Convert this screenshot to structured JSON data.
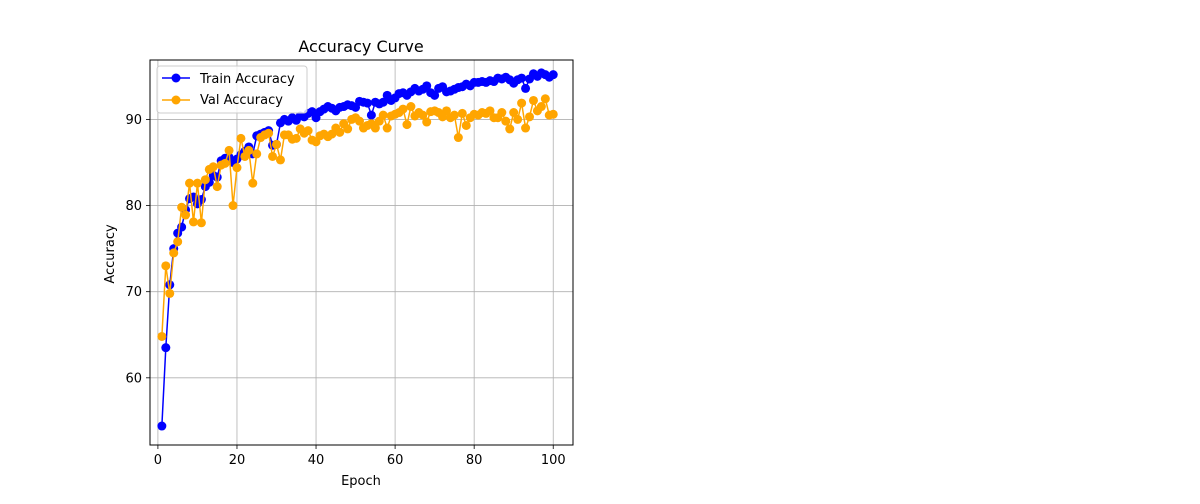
{
  "chart_data": {
    "type": "line",
    "title": "Accuracy Curve",
    "xlabel": "Epoch",
    "ylabel": "Accuracy",
    "xlim": [
      -2,
      105
    ],
    "ylim": [
      52.2,
      96.9
    ],
    "xticks": [
      0,
      20,
      40,
      60,
      80,
      100
    ],
    "yticks": [
      60,
      70,
      80,
      90
    ],
    "grid": true,
    "legend_position": "top-left",
    "x": [
      1,
      2,
      3,
      4,
      5,
      6,
      7,
      8,
      9,
      10,
      11,
      12,
      13,
      14,
      15,
      16,
      17,
      18,
      19,
      20,
      21,
      22,
      23,
      24,
      25,
      26,
      27,
      28,
      29,
      30,
      31,
      32,
      33,
      34,
      35,
      36,
      37,
      38,
      39,
      40,
      41,
      42,
      43,
      44,
      45,
      46,
      47,
      48,
      49,
      50,
      51,
      52,
      53,
      54,
      55,
      56,
      57,
      58,
      59,
      60,
      61,
      62,
      63,
      64,
      65,
      66,
      67,
      68,
      69,
      70,
      71,
      72,
      73,
      74,
      75,
      76,
      77,
      78,
      79,
      80,
      81,
      82,
      83,
      84,
      85,
      86,
      87,
      88,
      89,
      90,
      91,
      92,
      93,
      94,
      95,
      96,
      97,
      98,
      99,
      100
    ],
    "series": [
      {
        "name": "Train Accuracy",
        "color": "#0000ff",
        "values": [
          54.4,
          63.5,
          70.8,
          75.0,
          76.8,
          77.5,
          79.5,
          80.8,
          81.0,
          80.2,
          80.7,
          82.2,
          82.7,
          83.5,
          83.3,
          85.2,
          85.5,
          85.6,
          85.0,
          85.4,
          85.9,
          86.3,
          86.8,
          86.0,
          88.1,
          88.3,
          88.5,
          88.7,
          87.0,
          87.1,
          89.6,
          90.0,
          89.8,
          90.2,
          89.9,
          90.4,
          90.3,
          90.7,
          90.9,
          90.2,
          90.9,
          91.2,
          91.5,
          91.3,
          91.0,
          91.4,
          91.5,
          91.7,
          91.6,
          91.4,
          92.1,
          92.0,
          91.9,
          90.5,
          92.0,
          91.8,
          92.0,
          92.8,
          92.2,
          92.5,
          93.0,
          93.1,
          92.8,
          93.2,
          93.6,
          93.3,
          93.5,
          93.9,
          93.1,
          92.8,
          93.6,
          93.8,
          93.2,
          93.3,
          93.5,
          93.7,
          93.8,
          94.1,
          93.9,
          94.3,
          94.3,
          94.4,
          94.3,
          94.5,
          94.4,
          94.8,
          94.7,
          94.9,
          94.6,
          94.2,
          94.6,
          94.8,
          93.6,
          94.7,
          95.3,
          95.0,
          95.4,
          95.2,
          94.9,
          95.2
        ]
      },
      {
        "name": "Val Accuracy",
        "color": "#ffa500",
        "values": [
          64.8,
          73.0,
          69.8,
          74.5,
          75.8,
          79.8,
          78.9,
          82.6,
          78.1,
          82.6,
          78.0,
          83.0,
          84.2,
          84.5,
          82.2,
          84.7,
          84.9,
          86.4,
          80.0,
          84.4,
          87.8,
          85.7,
          86.4,
          82.6,
          86.0,
          87.9,
          88.2,
          88.4,
          85.7,
          87.1,
          85.3,
          88.2,
          88.2,
          87.7,
          87.8,
          88.9,
          88.4,
          88.7,
          87.6,
          87.4,
          88.1,
          88.3,
          88.0,
          88.3,
          89.0,
          88.5,
          89.5,
          88.9,
          90.0,
          90.2,
          89.8,
          89.0,
          89.3,
          89.5,
          89.0,
          89.8,
          90.5,
          89.0,
          90.4,
          90.6,
          90.8,
          91.2,
          89.4,
          91.5,
          90.4,
          90.8,
          90.5,
          89.7,
          90.9,
          91.0,
          90.8,
          90.3,
          91.0,
          90.2,
          90.5,
          87.9,
          90.7,
          89.3,
          90.2,
          90.6,
          90.5,
          90.8,
          90.7,
          91.0,
          90.2,
          90.2,
          90.8,
          89.8,
          88.9,
          90.8,
          90.0,
          91.9,
          89.0,
          90.3,
          92.2,
          91.0,
          91.5,
          92.4,
          90.5,
          90.6
        ]
      }
    ]
  }
}
